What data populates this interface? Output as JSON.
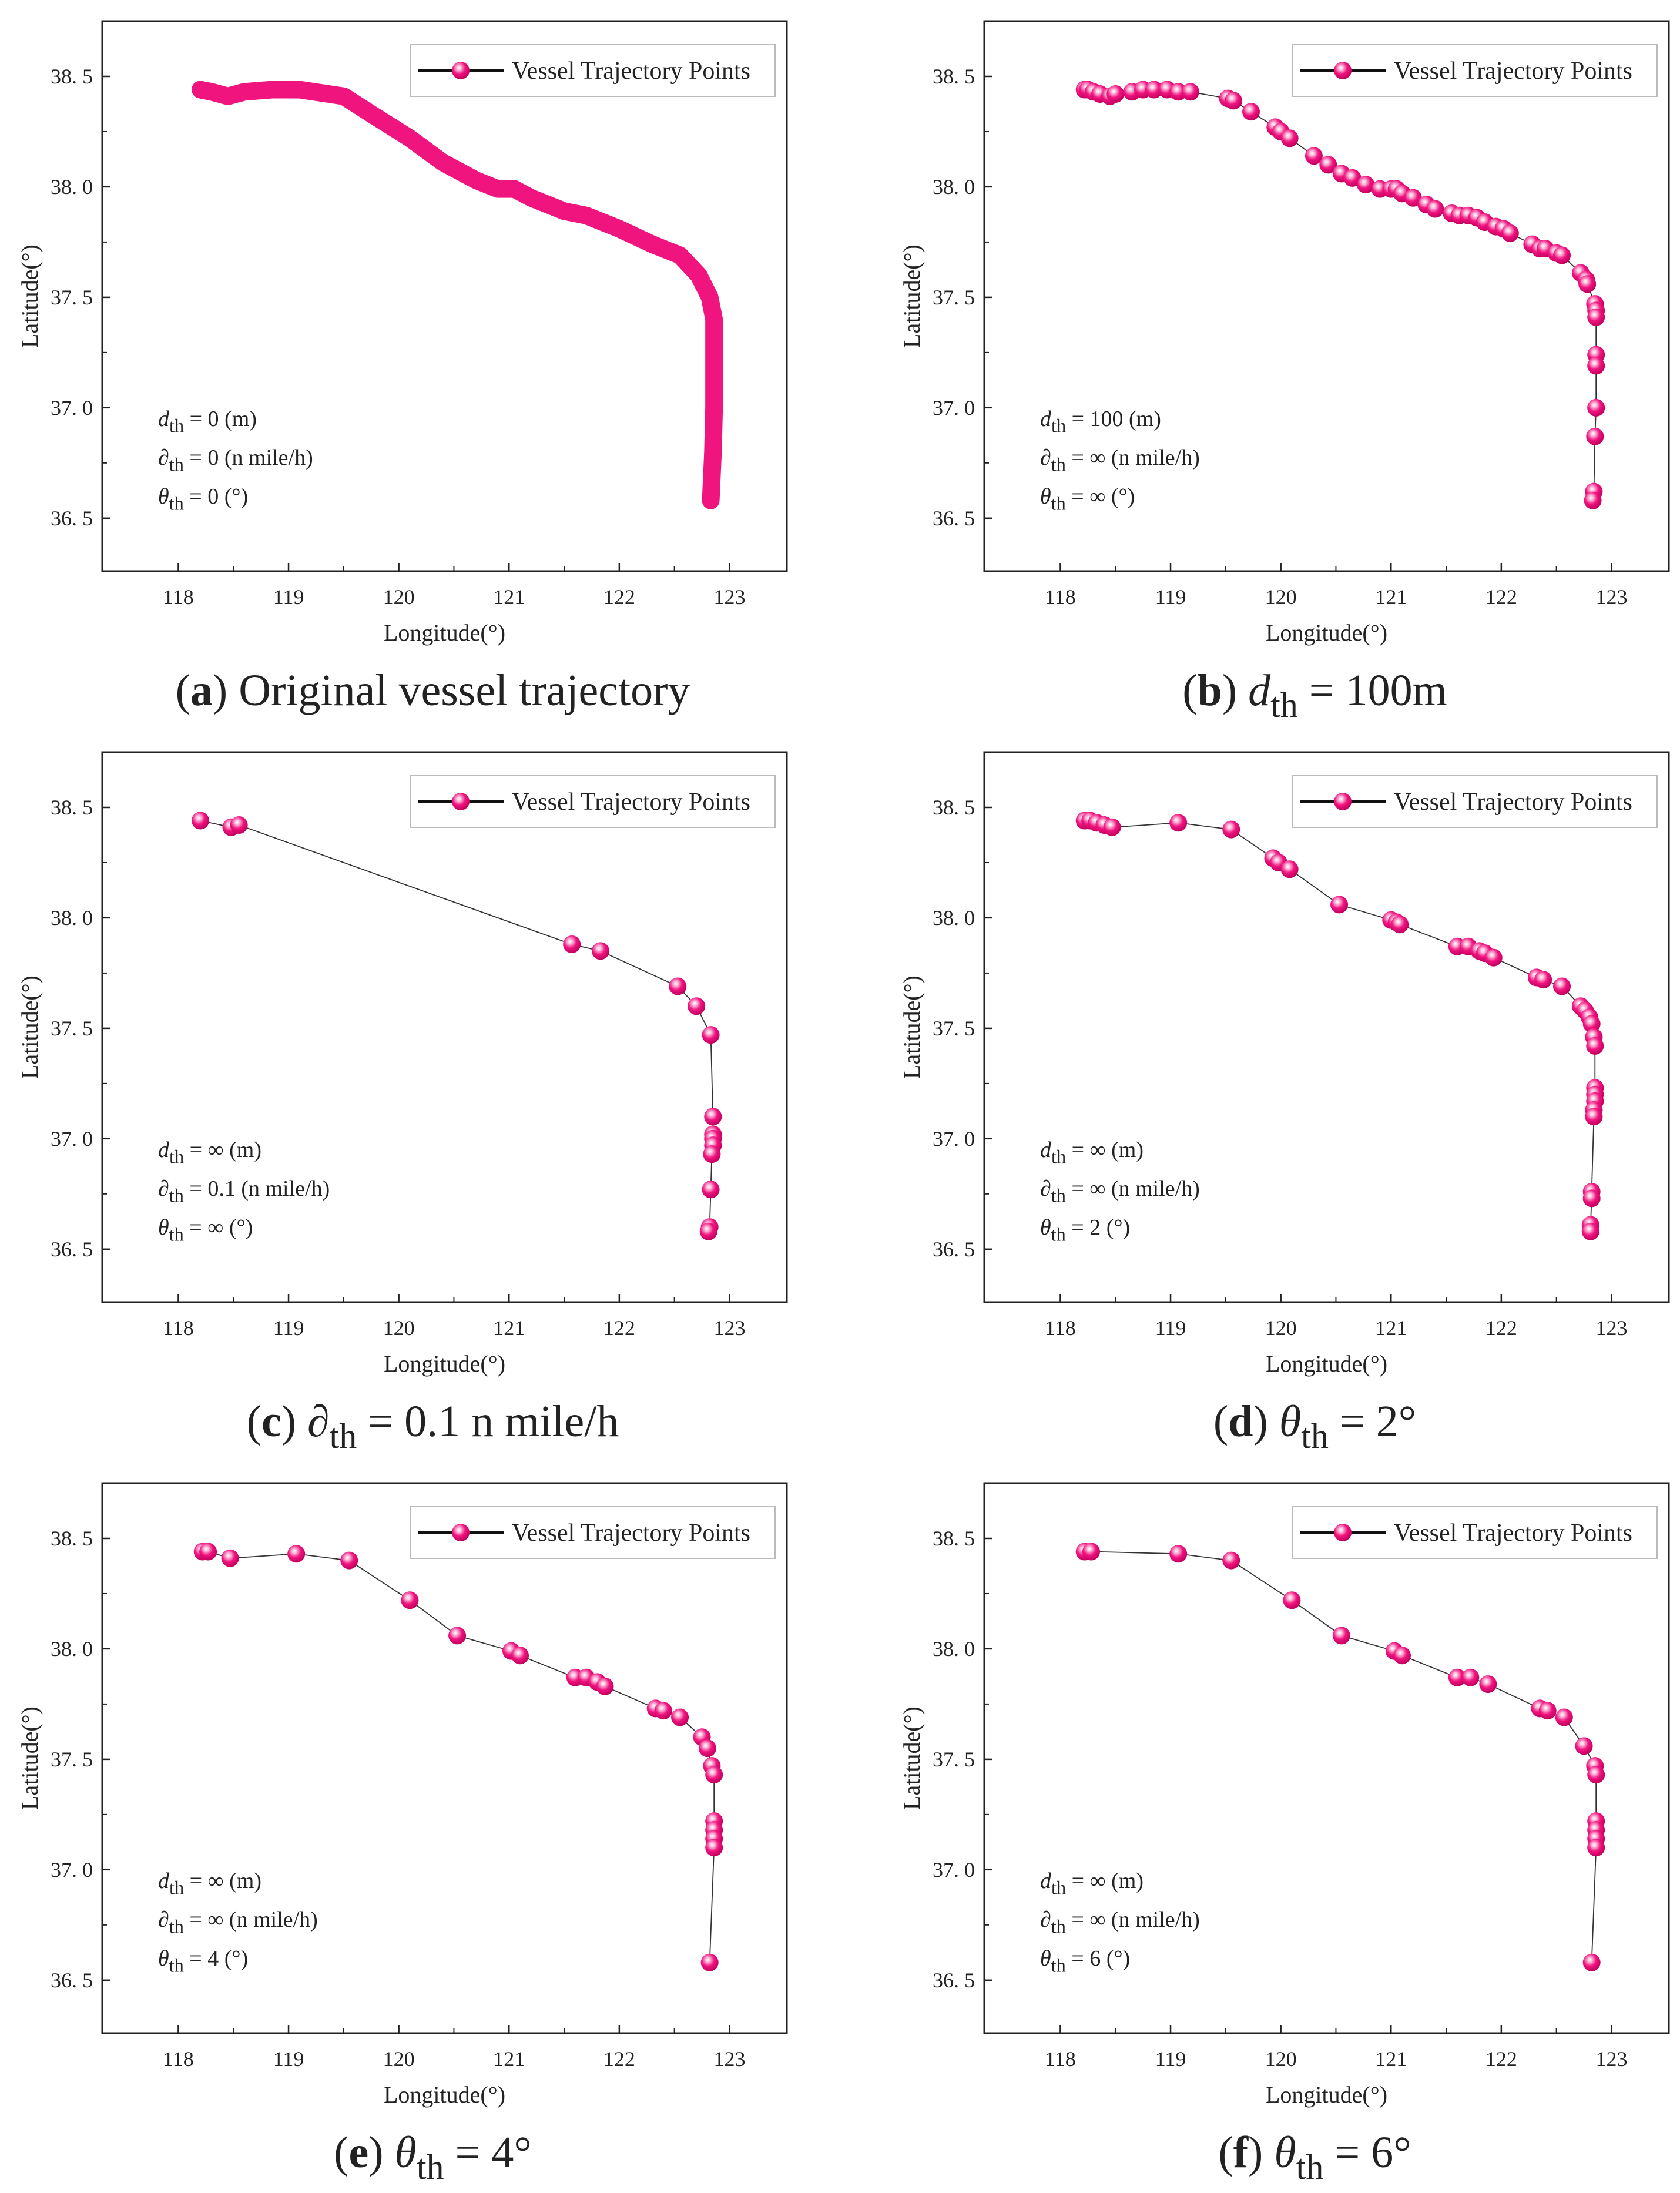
{
  "colors": {
    "marker": "#f0147f",
    "marker_light": "#ffc2e0",
    "line": "#333333",
    "axis": "#222222"
  },
  "chart_data": [
    {
      "id": "a",
      "type": "line",
      "caption": {
        "label": "a",
        "symbol": "",
        "sub": "",
        "rest": "Original vessel trajectory"
      },
      "xlabel": "Longitude(°)",
      "ylabel": "Latitude(°)",
      "xlim": [
        117.31,
        123.52
      ],
      "ylim": [
        36.26,
        38.75
      ],
      "xticks": [
        118,
        119,
        120,
        121,
        122,
        123
      ],
      "yticks": [
        "36. 5",
        "37. 0",
        "37. 5",
        "38. 0",
        "38. 5"
      ],
      "ytick_values": [
        36.5,
        37.0,
        37.5,
        38.0,
        38.5
      ],
      "legend": "Vessel Trajectory Points",
      "legend_position": "top-right",
      "style": "thick-line",
      "params": [
        {
          "symbol": "d",
          "sub": "th",
          "rest": " = 0 (m)"
        },
        {
          "symbol": "∂",
          "sub": "th",
          "rest": " = 0 (n mile/h)"
        },
        {
          "symbol": "θ",
          "sub": "th",
          "rest": " = 0 (°)"
        }
      ],
      "points": [
        [
          118.2,
          38.44
        ],
        [
          118.3,
          38.43
        ],
        [
          118.45,
          38.41
        ],
        [
          118.6,
          38.43
        ],
        [
          118.85,
          38.44
        ],
        [
          119.1,
          38.44
        ],
        [
          119.5,
          38.41
        ],
        [
          119.75,
          38.33
        ],
        [
          120.1,
          38.22
        ],
        [
          120.4,
          38.11
        ],
        [
          120.7,
          38.03
        ],
        [
          120.9,
          37.99
        ],
        [
          121.05,
          37.99
        ],
        [
          121.2,
          37.95
        ],
        [
          121.5,
          37.89
        ],
        [
          121.7,
          37.87
        ],
        [
          122.0,
          37.81
        ],
        [
          122.3,
          37.74
        ],
        [
          122.55,
          37.69
        ],
        [
          122.72,
          37.6
        ],
        [
          122.82,
          37.5
        ],
        [
          122.86,
          37.4
        ],
        [
          122.86,
          37.2
        ],
        [
          122.86,
          37.0
        ],
        [
          122.85,
          36.8
        ],
        [
          122.83,
          36.58
        ]
      ]
    },
    {
      "id": "b",
      "type": "line",
      "caption": {
        "label": "b",
        "symbol": "d",
        "sub": "th",
        "rest": " = 100m"
      },
      "xlabel": "Longitude(°)",
      "ylabel": "Latitude(°)",
      "xlim": [
        117.31,
        123.52
      ],
      "ylim": [
        36.26,
        38.75
      ],
      "xticks": [
        118,
        119,
        120,
        121,
        122,
        123
      ],
      "yticks": [
        "36. 5",
        "37. 0",
        "37. 5",
        "38. 0",
        "38. 5"
      ],
      "ytick_values": [
        36.5,
        37.0,
        37.5,
        38.0,
        38.5
      ],
      "legend": "Vessel Trajectory Points",
      "legend_position": "top-right",
      "style": "markers",
      "params": [
        {
          "symbol": "d",
          "sub": "th",
          "rest": " = 100 (m)"
        },
        {
          "symbol": "∂",
          "sub": "th",
          "rest": " = ∞ (n mile/h)"
        },
        {
          "symbol": "θ",
          "sub": "th",
          "rest": " = ∞ (°)"
        }
      ],
      "points": [
        [
          118.22,
          38.44
        ],
        [
          118.25,
          38.44
        ],
        [
          118.3,
          38.43
        ],
        [
          118.36,
          38.42
        ],
        [
          118.45,
          38.41
        ],
        [
          118.5,
          38.42
        ],
        [
          118.65,
          38.43
        ],
        [
          118.75,
          38.44
        ],
        [
          118.85,
          38.44
        ],
        [
          118.97,
          38.44
        ],
        [
          119.07,
          38.43
        ],
        [
          119.18,
          38.43
        ],
        [
          119.52,
          38.4
        ],
        [
          119.57,
          38.39
        ],
        [
          119.73,
          38.34
        ],
        [
          119.95,
          38.27
        ],
        [
          120.0,
          38.25
        ],
        [
          120.08,
          38.22
        ],
        [
          120.3,
          38.14
        ],
        [
          120.43,
          38.1
        ],
        [
          120.55,
          38.06
        ],
        [
          120.65,
          38.04
        ],
        [
          120.77,
          38.01
        ],
        [
          120.9,
          37.99
        ],
        [
          121.0,
          37.99
        ],
        [
          121.05,
          37.99
        ],
        [
          121.1,
          37.97
        ],
        [
          121.2,
          37.95
        ],
        [
          121.32,
          37.92
        ],
        [
          121.4,
          37.9
        ],
        [
          121.55,
          37.88
        ],
        [
          121.62,
          37.87
        ],
        [
          121.7,
          37.87
        ],
        [
          121.78,
          37.86
        ],
        [
          121.85,
          37.84
        ],
        [
          121.95,
          37.82
        ],
        [
          122.02,
          37.81
        ],
        [
          122.08,
          37.79
        ],
        [
          122.28,
          37.74
        ],
        [
          122.35,
          37.72
        ],
        [
          122.4,
          37.72
        ],
        [
          122.5,
          37.7
        ],
        [
          122.55,
          37.69
        ],
        [
          122.72,
          37.61
        ],
        [
          122.77,
          37.58
        ],
        [
          122.78,
          37.56
        ],
        [
          122.85,
          37.47
        ],
        [
          122.86,
          37.44
        ],
        [
          122.86,
          37.41
        ],
        [
          122.86,
          37.24
        ],
        [
          122.86,
          37.19
        ],
        [
          122.86,
          37.0
        ],
        [
          122.85,
          36.87
        ],
        [
          122.84,
          36.62
        ],
        [
          122.83,
          36.58
        ]
      ]
    },
    {
      "id": "c",
      "type": "line",
      "caption": {
        "label": "c",
        "symbol": "∂",
        "sub": "th",
        "rest": " = 0.1 n mile/h"
      },
      "xlabel": "Longitude(°)",
      "ylabel": "Latitude(°)",
      "xlim": [
        117.31,
        123.52
      ],
      "ylim": [
        36.26,
        38.75
      ],
      "xticks": [
        118,
        119,
        120,
        121,
        122,
        123
      ],
      "yticks": [
        "36. 5",
        "37. 0",
        "37. 5",
        "38. 0",
        "38. 5"
      ],
      "ytick_values": [
        36.5,
        37.0,
        37.5,
        38.0,
        38.5
      ],
      "legend": "Vessel Trajectory Points",
      "legend_position": "top-right",
      "style": "markers",
      "params": [
        {
          "symbol": "d",
          "sub": "th",
          "rest": " = ∞ (m)"
        },
        {
          "symbol": "∂",
          "sub": "th",
          "rest": " = 0.1 (n mile/h)"
        },
        {
          "symbol": "θ",
          "sub": "th",
          "rest": " = ∞ (°)"
        }
      ],
      "points": [
        [
          118.2,
          38.44
        ],
        [
          118.48,
          38.41
        ],
        [
          118.55,
          38.42
        ],
        [
          121.57,
          37.88
        ],
        [
          121.83,
          37.85
        ],
        [
          122.53,
          37.69
        ],
        [
          122.7,
          37.6
        ],
        [
          122.83,
          37.47
        ],
        [
          122.85,
          37.1
        ],
        [
          122.85,
          37.02
        ],
        [
          122.85,
          37.0
        ],
        [
          122.85,
          36.97
        ],
        [
          122.84,
          36.93
        ],
        [
          122.83,
          36.77
        ],
        [
          122.82,
          36.6
        ],
        [
          122.81,
          36.58
        ]
      ]
    },
    {
      "id": "d",
      "type": "line",
      "caption": {
        "label": "d",
        "symbol": "θ",
        "sub": "th",
        "rest": " =  2°"
      },
      "xlabel": "Longitude(°)",
      "ylabel": "Latitude(°)",
      "xlim": [
        117.31,
        123.52
      ],
      "ylim": [
        36.26,
        38.75
      ],
      "xticks": [
        118,
        119,
        120,
        121,
        122,
        123
      ],
      "yticks": [
        "36. 5",
        "37. 0",
        "37. 5",
        "38. 0",
        "38. 5"
      ],
      "ytick_values": [
        36.5,
        37.0,
        37.5,
        38.0,
        38.5
      ],
      "legend": "Vessel Trajectory Points",
      "legend_position": "top-right",
      "style": "markers",
      "params": [
        {
          "symbol": "d",
          "sub": "th",
          "rest": " = ∞ (m)"
        },
        {
          "symbol": "∂",
          "sub": "th",
          "rest": " = ∞ (n mile/h)"
        },
        {
          "symbol": "θ",
          "sub": "th",
          "rest": " = 2 (°)"
        }
      ],
      "points": [
        [
          118.22,
          38.44
        ],
        [
          118.27,
          38.44
        ],
        [
          118.33,
          38.43
        ],
        [
          118.4,
          38.42
        ],
        [
          118.47,
          38.41
        ],
        [
          119.07,
          38.43
        ],
        [
          119.55,
          38.4
        ],
        [
          119.93,
          38.27
        ],
        [
          119.98,
          38.25
        ],
        [
          120.08,
          38.22
        ],
        [
          120.53,
          38.06
        ],
        [
          121.0,
          37.99
        ],
        [
          121.05,
          37.98
        ],
        [
          121.08,
          37.97
        ],
        [
          121.6,
          37.87
        ],
        [
          121.7,
          37.87
        ],
        [
          121.8,
          37.85
        ],
        [
          121.85,
          37.84
        ],
        [
          121.93,
          37.82
        ],
        [
          122.32,
          37.73
        ],
        [
          122.38,
          37.72
        ],
        [
          122.55,
          37.69
        ],
        [
          122.72,
          37.6
        ],
        [
          122.76,
          37.58
        ],
        [
          122.8,
          37.55
        ],
        [
          122.82,
          37.52
        ],
        [
          122.84,
          37.46
        ],
        [
          122.85,
          37.42
        ],
        [
          122.85,
          37.23
        ],
        [
          122.85,
          37.2
        ],
        [
          122.85,
          37.17
        ],
        [
          122.84,
          37.13
        ],
        [
          122.84,
          37.1
        ],
        [
          122.82,
          36.76
        ],
        [
          122.82,
          36.73
        ],
        [
          122.81,
          36.61
        ],
        [
          122.81,
          36.58
        ]
      ]
    },
    {
      "id": "e",
      "type": "line",
      "caption": {
        "label": "e",
        "symbol": "θ",
        "sub": "th",
        "rest": " =  4°"
      },
      "xlabel": "Longitude(°)",
      "ylabel": "Latitude(°)",
      "xlim": [
        117.31,
        123.52
      ],
      "ylim": [
        36.26,
        38.75
      ],
      "xticks": [
        118,
        119,
        120,
        121,
        122,
        123
      ],
      "yticks": [
        "36. 5",
        "37. 0",
        "37. 5",
        "38. 0",
        "38. 5"
      ],
      "ytick_values": [
        36.5,
        37.0,
        37.5,
        38.0,
        38.5
      ],
      "legend": "Vessel Trajectory Points",
      "legend_position": "top-right",
      "style": "markers",
      "params": [
        {
          "symbol": "d",
          "sub": "th",
          "rest": " = ∞ (m)"
        },
        {
          "symbol": "∂",
          "sub": "th",
          "rest": " = ∞ (n mile/h)"
        },
        {
          "symbol": "θ",
          "sub": "th",
          "rest": " = 4 (°)"
        }
      ],
      "points": [
        [
          118.22,
          38.44
        ],
        [
          118.27,
          38.44
        ],
        [
          118.47,
          38.41
        ],
        [
          119.07,
          38.43
        ],
        [
          119.55,
          38.4
        ],
        [
          120.1,
          38.22
        ],
        [
          120.53,
          38.06
        ],
        [
          121.02,
          37.99
        ],
        [
          121.1,
          37.97
        ],
        [
          121.6,
          37.87
        ],
        [
          121.7,
          37.87
        ],
        [
          121.8,
          37.85
        ],
        [
          121.87,
          37.83
        ],
        [
          122.33,
          37.73
        ],
        [
          122.4,
          37.72
        ],
        [
          122.55,
          37.69
        ],
        [
          122.75,
          37.6
        ],
        [
          122.8,
          37.55
        ],
        [
          122.84,
          37.47
        ],
        [
          122.86,
          37.43
        ],
        [
          122.86,
          37.22
        ],
        [
          122.86,
          37.18
        ],
        [
          122.86,
          37.14
        ],
        [
          122.86,
          37.1
        ],
        [
          122.82,
          36.58
        ]
      ]
    },
    {
      "id": "f",
      "type": "line",
      "caption": {
        "label": "f",
        "symbol": "θ",
        "sub": "th",
        "rest": " =  6°"
      },
      "xlabel": "Longitude(°)",
      "ylabel": "Latitude(°)",
      "xlim": [
        117.31,
        123.52
      ],
      "ylim": [
        36.26,
        38.75
      ],
      "xticks": [
        118,
        119,
        120,
        121,
        122,
        123
      ],
      "yticks": [
        "36. 5",
        "37. 0",
        "37. 5",
        "38. 0",
        "38. 5"
      ],
      "ytick_values": [
        36.5,
        37.0,
        37.5,
        38.0,
        38.5
      ],
      "legend": "Vessel Trajectory Points",
      "legend_position": "top-right",
      "style": "markers",
      "params": [
        {
          "symbol": "d",
          "sub": "th",
          "rest": " = ∞ (m)"
        },
        {
          "symbol": "∂",
          "sub": "th",
          "rest": " = ∞ (n mile/h)"
        },
        {
          "symbol": "θ",
          "sub": "th",
          "rest": " = 6 (°)"
        }
      ],
      "points": [
        [
          118.22,
          38.44
        ],
        [
          118.28,
          38.44
        ],
        [
          119.07,
          38.43
        ],
        [
          119.55,
          38.4
        ],
        [
          120.1,
          38.22
        ],
        [
          120.55,
          38.06
        ],
        [
          121.03,
          37.99
        ],
        [
          121.1,
          37.97
        ],
        [
          121.6,
          37.87
        ],
        [
          121.72,
          37.87
        ],
        [
          121.88,
          37.84
        ],
        [
          122.35,
          37.73
        ],
        [
          122.42,
          37.72
        ],
        [
          122.57,
          37.69
        ],
        [
          122.75,
          37.56
        ],
        [
          122.85,
          37.47
        ],
        [
          122.86,
          37.43
        ],
        [
          122.86,
          37.22
        ],
        [
          122.86,
          37.18
        ],
        [
          122.86,
          37.14
        ],
        [
          122.86,
          37.1
        ],
        [
          122.82,
          36.58
        ]
      ]
    }
  ]
}
